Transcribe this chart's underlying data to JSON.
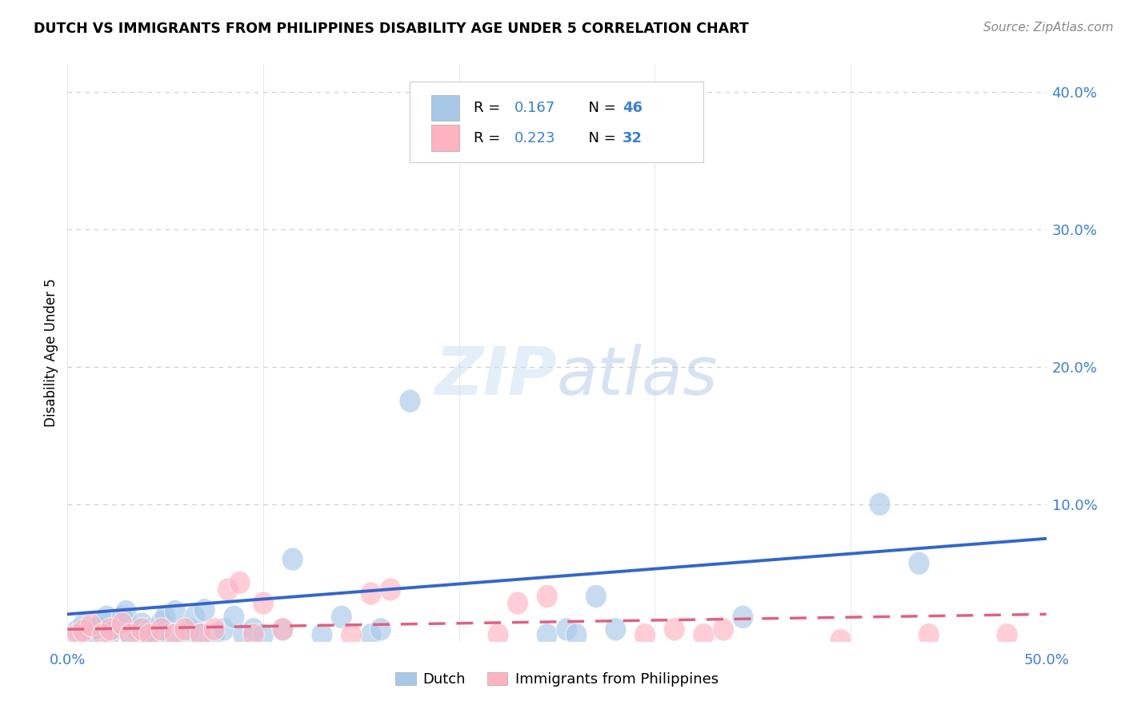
{
  "title": "DUTCH VS IMMIGRANTS FROM PHILIPPINES DISABILITY AGE UNDER 5 CORRELATION CHART",
  "source": "Source: ZipAtlas.com",
  "ylabel": "Disability Age Under 5",
  "xlim": [
    0.0,
    0.5
  ],
  "ylim": [
    0.0,
    0.42
  ],
  "xtick_positions": [
    0.0,
    0.1,
    0.2,
    0.3,
    0.4,
    0.5
  ],
  "yticks_right": [
    0.0,
    0.1,
    0.2,
    0.3,
    0.4
  ],
  "yticklabels_right": [
    "",
    "10.0%",
    "20.0%",
    "30.0%",
    "40.0%"
  ],
  "legend_r_dutch": "0.167",
  "legend_n_dutch": "46",
  "legend_r_phil": "0.223",
  "legend_n_phil": "32",
  "legend_label_dutch": "Dutch",
  "legend_label_phil": "Immigrants from Philippines",
  "dutch_color": "#a8c8e8",
  "dutch_line_color": "#3366cc",
  "phil_color": "#ffb3c1",
  "phil_line_color": "#e06080",
  "background_color": "#ffffff",
  "grid_color": "#cccccc",
  "text_blue": "#3a7fd5",
  "dutch_scatter_x": [
    0.005,
    0.008,
    0.012,
    0.015,
    0.018,
    0.02,
    0.022,
    0.025,
    0.028,
    0.03,
    0.032,
    0.035,
    0.038,
    0.04,
    0.042,
    0.045,
    0.048,
    0.05,
    0.052,
    0.055,
    0.06,
    0.062,
    0.065,
    0.068,
    0.07,
    0.075,
    0.08,
    0.085,
    0.09,
    0.095,
    0.1,
    0.11,
    0.115,
    0.13,
    0.14,
    0.155,
    0.16,
    0.175,
    0.245,
    0.255,
    0.26,
    0.27,
    0.28,
    0.345,
    0.415,
    0.435
  ],
  "dutch_scatter_y": [
    0.008,
    0.012,
    0.006,
    0.01,
    0.015,
    0.018,
    0.006,
    0.01,
    0.018,
    0.022,
    0.005,
    0.009,
    0.013,
    0.005,
    0.009,
    0.005,
    0.014,
    0.018,
    0.005,
    0.022,
    0.005,
    0.009,
    0.018,
    0.005,
    0.023,
    0.005,
    0.009,
    0.018,
    0.005,
    0.009,
    0.005,
    0.009,
    0.06,
    0.005,
    0.018,
    0.005,
    0.009,
    0.175,
    0.005,
    0.009,
    0.005,
    0.033,
    0.009,
    0.018,
    0.1,
    0.057
  ],
  "phil_scatter_x": [
    0.005,
    0.008,
    0.012,
    0.018,
    0.022,
    0.028,
    0.032,
    0.038,
    0.042,
    0.048,
    0.055,
    0.06,
    0.068,
    0.075,
    0.082,
    0.088,
    0.095,
    0.1,
    0.11,
    0.145,
    0.155,
    0.165,
    0.22,
    0.23,
    0.245,
    0.295,
    0.31,
    0.325,
    0.335,
    0.395,
    0.44,
    0.48
  ],
  "phil_scatter_y": [
    0.005,
    0.008,
    0.012,
    0.005,
    0.009,
    0.013,
    0.005,
    0.009,
    0.005,
    0.009,
    0.005,
    0.009,
    0.005,
    0.009,
    0.038,
    0.043,
    0.005,
    0.028,
    0.009,
    0.005,
    0.035,
    0.038,
    0.005,
    0.028,
    0.033,
    0.005,
    0.009,
    0.005,
    0.009,
    0.001,
    0.005,
    0.005
  ],
  "dutch_trendline_x": [
    0.0,
    0.5
  ],
  "dutch_trendline_y": [
    0.02,
    0.075
  ],
  "phil_trendline_x": [
    0.0,
    0.5
  ],
  "phil_trendline_y": [
    0.009,
    0.02
  ]
}
